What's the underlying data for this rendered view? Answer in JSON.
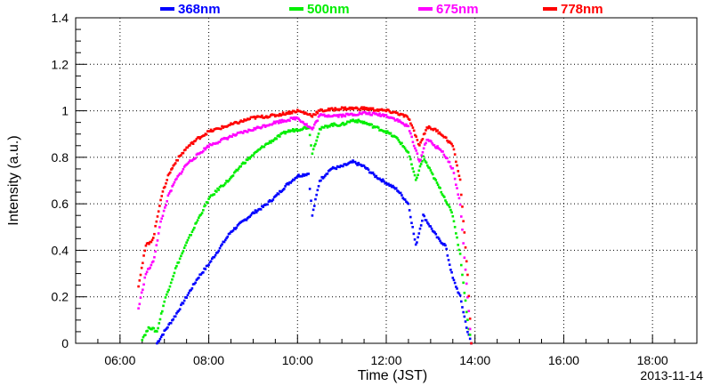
{
  "chart_data": {
    "type": "scatter",
    "title": "",
    "xlabel": "Time (JST)",
    "ylabel": "Intensity (a.u.)",
    "date_label": "2013-11-14",
    "xlim": [
      "05:00",
      "19:00"
    ],
    "ylim": [
      0,
      1.4
    ],
    "xticks": [
      "06:00",
      "08:00",
      "10:00",
      "12:00",
      "14:00",
      "16:00",
      "18:00"
    ],
    "yticks": [
      "0",
      "0.2",
      "0.4",
      "0.6",
      "0.8",
      "1",
      "1.2",
      "1.4"
    ],
    "grid": true,
    "legend_position": "top",
    "series": [
      {
        "name": "368nm",
        "color": "#0000ff",
        "points": [
          [
            "06:50",
            0.0
          ],
          [
            "07:00",
            0.05
          ],
          [
            "07:15",
            0.12
          ],
          [
            "07:30",
            0.2
          ],
          [
            "07:45",
            0.28
          ],
          [
            "08:00",
            0.34
          ],
          [
            "08:15",
            0.41
          ],
          [
            "08:30",
            0.48
          ],
          [
            "08:45",
            0.52
          ],
          [
            "09:00",
            0.56
          ],
          [
            "09:15",
            0.59
          ],
          [
            "09:30",
            0.63
          ],
          [
            "09:45",
            0.68
          ],
          [
            "10:00",
            0.72
          ],
          [
            "10:15",
            0.73
          ],
          [
            "10:20",
            0.55
          ],
          [
            "10:30",
            0.7
          ],
          [
            "10:45",
            0.75
          ],
          [
            "11:00",
            0.76
          ],
          [
            "11:15",
            0.78
          ],
          [
            "11:30",
            0.76
          ],
          [
            "11:45",
            0.72
          ],
          [
            "12:00",
            0.69
          ],
          [
            "12:15",
            0.66
          ],
          [
            "12:30",
            0.6
          ],
          [
            "12:40",
            0.42
          ],
          [
            "12:50",
            0.55
          ],
          [
            "13:00",
            0.5
          ],
          [
            "13:10",
            0.45
          ],
          [
            "13:20",
            0.42
          ],
          [
            "13:30",
            0.28
          ],
          [
            "13:40",
            0.2
          ],
          [
            "13:50",
            0.05
          ],
          [
            "13:55",
            0.0
          ]
        ]
      },
      {
        "name": "500nm",
        "color": "#00ee00",
        "points": [
          [
            "06:30",
            0.02
          ],
          [
            "06:40",
            0.07
          ],
          [
            "06:50",
            0.05
          ],
          [
            "07:00",
            0.18
          ],
          [
            "07:15",
            0.32
          ],
          [
            "07:30",
            0.43
          ],
          [
            "07:45",
            0.53
          ],
          [
            "08:00",
            0.62
          ],
          [
            "08:15",
            0.67
          ],
          [
            "08:30",
            0.71
          ],
          [
            "08:45",
            0.77
          ],
          [
            "09:00",
            0.81
          ],
          [
            "09:15",
            0.85
          ],
          [
            "09:30",
            0.88
          ],
          [
            "09:45",
            0.91
          ],
          [
            "10:00",
            0.92
          ],
          [
            "10:15",
            0.93
          ],
          [
            "10:20",
            0.82
          ],
          [
            "10:30",
            0.92
          ],
          [
            "10:45",
            0.94
          ],
          [
            "11:00",
            0.94
          ],
          [
            "11:15",
            0.96
          ],
          [
            "11:30",
            0.95
          ],
          [
            "11:45",
            0.93
          ],
          [
            "12:00",
            0.91
          ],
          [
            "12:15",
            0.88
          ],
          [
            "12:30",
            0.82
          ],
          [
            "12:40",
            0.7
          ],
          [
            "12:50",
            0.8
          ],
          [
            "13:00",
            0.74
          ],
          [
            "13:10",
            0.68
          ],
          [
            "13:20",
            0.62
          ],
          [
            "13:30",
            0.55
          ],
          [
            "13:40",
            0.38
          ],
          [
            "13:50",
            0.1
          ],
          [
            "13:55",
            0.0
          ]
        ]
      },
      {
        "name": "675nm",
        "color": "#ff00ff",
        "points": [
          [
            "06:25",
            0.15
          ],
          [
            "06:35",
            0.3
          ],
          [
            "06:45",
            0.35
          ],
          [
            "06:55",
            0.52
          ],
          [
            "07:05",
            0.63
          ],
          [
            "07:15",
            0.7
          ],
          [
            "07:30",
            0.77
          ],
          [
            "07:45",
            0.81
          ],
          [
            "08:00",
            0.85
          ],
          [
            "08:30",
            0.89
          ],
          [
            "09:00",
            0.92
          ],
          [
            "09:30",
            0.95
          ],
          [
            "10:00",
            0.97
          ],
          [
            "10:20",
            0.92
          ],
          [
            "10:30",
            0.98
          ],
          [
            "11:00",
            0.98
          ],
          [
            "11:30",
            0.99
          ],
          [
            "12:00",
            0.98
          ],
          [
            "12:15",
            0.96
          ],
          [
            "12:30",
            0.93
          ],
          [
            "12:45",
            0.78
          ],
          [
            "12:55",
            0.88
          ],
          [
            "13:05",
            0.85
          ],
          [
            "13:15",
            0.83
          ],
          [
            "13:30",
            0.75
          ],
          [
            "13:40",
            0.6
          ],
          [
            "13:50",
            0.2
          ],
          [
            "13:55",
            0.0
          ]
        ]
      },
      {
        "name": "778nm",
        "color": "#ff0000",
        "points": [
          [
            "06:25",
            0.25
          ],
          [
            "06:35",
            0.42
          ],
          [
            "06:45",
            0.45
          ],
          [
            "06:55",
            0.62
          ],
          [
            "07:05",
            0.72
          ],
          [
            "07:15",
            0.78
          ],
          [
            "07:30",
            0.84
          ],
          [
            "07:45",
            0.88
          ],
          [
            "08:00",
            0.91
          ],
          [
            "08:30",
            0.94
          ],
          [
            "09:00",
            0.97
          ],
          [
            "09:30",
            0.98
          ],
          [
            "10:00",
            1.0
          ],
          [
            "10:20",
            0.98
          ],
          [
            "10:30",
            1.0
          ],
          [
            "11:00",
            1.01
          ],
          [
            "11:30",
            1.01
          ],
          [
            "12:00",
            1.0
          ],
          [
            "12:15",
            0.99
          ],
          [
            "12:30",
            0.97
          ],
          [
            "12:45",
            0.85
          ],
          [
            "12:55",
            0.93
          ],
          [
            "13:05",
            0.92
          ],
          [
            "13:15",
            0.9
          ],
          [
            "13:30",
            0.85
          ],
          [
            "13:40",
            0.7
          ],
          [
            "13:50",
            0.3
          ],
          [
            "13:55",
            0.0
          ]
        ]
      }
    ]
  }
}
